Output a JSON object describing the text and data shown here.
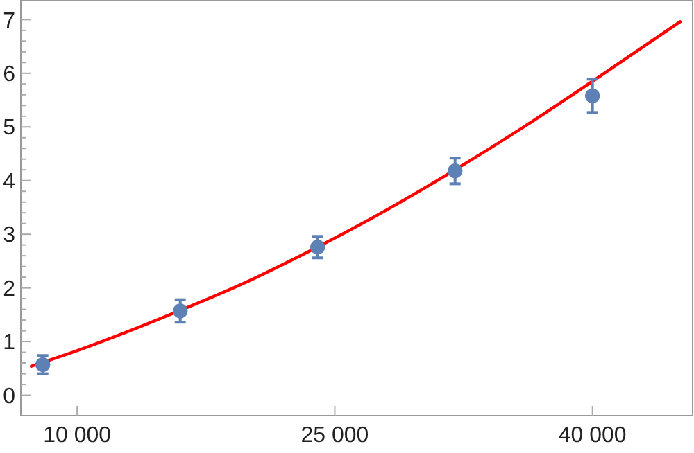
{
  "chart_data": {
    "type": "scatter",
    "xlim": [
      6720,
      45830
    ],
    "ylim": [
      -0.38,
      7.34
    ],
    "xticks": [
      {
        "value": 10000,
        "label": "10 000"
      },
      {
        "value": 25000,
        "label": "25 000"
      },
      {
        "value": 40000,
        "label": "40 000"
      }
    ],
    "yticks": [
      0,
      {
        "value": 0.2,
        "label": null
      },
      {
        "value": 0.4,
        "label": null
      },
      {
        "value": 0.6,
        "label": null
      },
      {
        "value": 0.8,
        "label": null
      },
      1,
      {
        "value": 1.2,
        "label": null
      },
      {
        "value": 1.4,
        "label": null
      },
      {
        "value": 1.6,
        "label": null
      },
      {
        "value": 1.8,
        "label": null
      },
      2,
      {
        "value": 2.2,
        "label": null
      },
      {
        "value": 2.4,
        "label": null
      },
      {
        "value": 2.6,
        "label": null
      },
      {
        "value": 2.8,
        "label": null
      },
      3,
      {
        "value": 3.2,
        "label": null
      },
      {
        "value": 3.4,
        "label": null
      },
      {
        "value": 3.6,
        "label": null
      },
      {
        "value": 3.8,
        "label": null
      },
      4,
      {
        "value": 4.2,
        "label": null
      },
      {
        "value": 4.4,
        "label": null
      },
      {
        "value": 4.6,
        "label": null
      },
      {
        "value": 4.8,
        "label": null
      },
      5,
      {
        "value": 5.2,
        "label": null
      },
      {
        "value": 5.4,
        "label": null
      },
      {
        "value": 5.6,
        "label": null
      },
      {
        "value": 5.8,
        "label": null
      },
      6,
      {
        "value": 6.2,
        "label": null
      },
      {
        "value": 6.4,
        "label": null
      },
      {
        "value": 6.6,
        "label": null
      },
      {
        "value": 6.8,
        "label": null
      },
      7
    ],
    "marker": "circle",
    "grid": false,
    "series": [
      {
        "type": "line",
        "marker": "none",
        "color": "#ff0000",
        "x": [
          7330,
          10000,
          16000,
          20000,
          22000,
          28000,
          32000,
          36000,
          40000,
          45100
        ],
        "values": [
          0.54,
          0.83,
          1.58,
          2.13,
          2.44,
          3.45,
          4.2,
          5.0,
          5.85,
          6.96
        ]
      },
      {
        "color": "#5e81b5",
        "x": [
          8000,
          16000,
          24000,
          32000,
          40000
        ],
        "values": [
          0.57,
          1.57,
          2.76,
          4.18,
          5.58
        ],
        "errors": [
          0.17,
          0.21,
          0.2,
          0.24,
          0.31
        ]
      }
    ]
  }
}
